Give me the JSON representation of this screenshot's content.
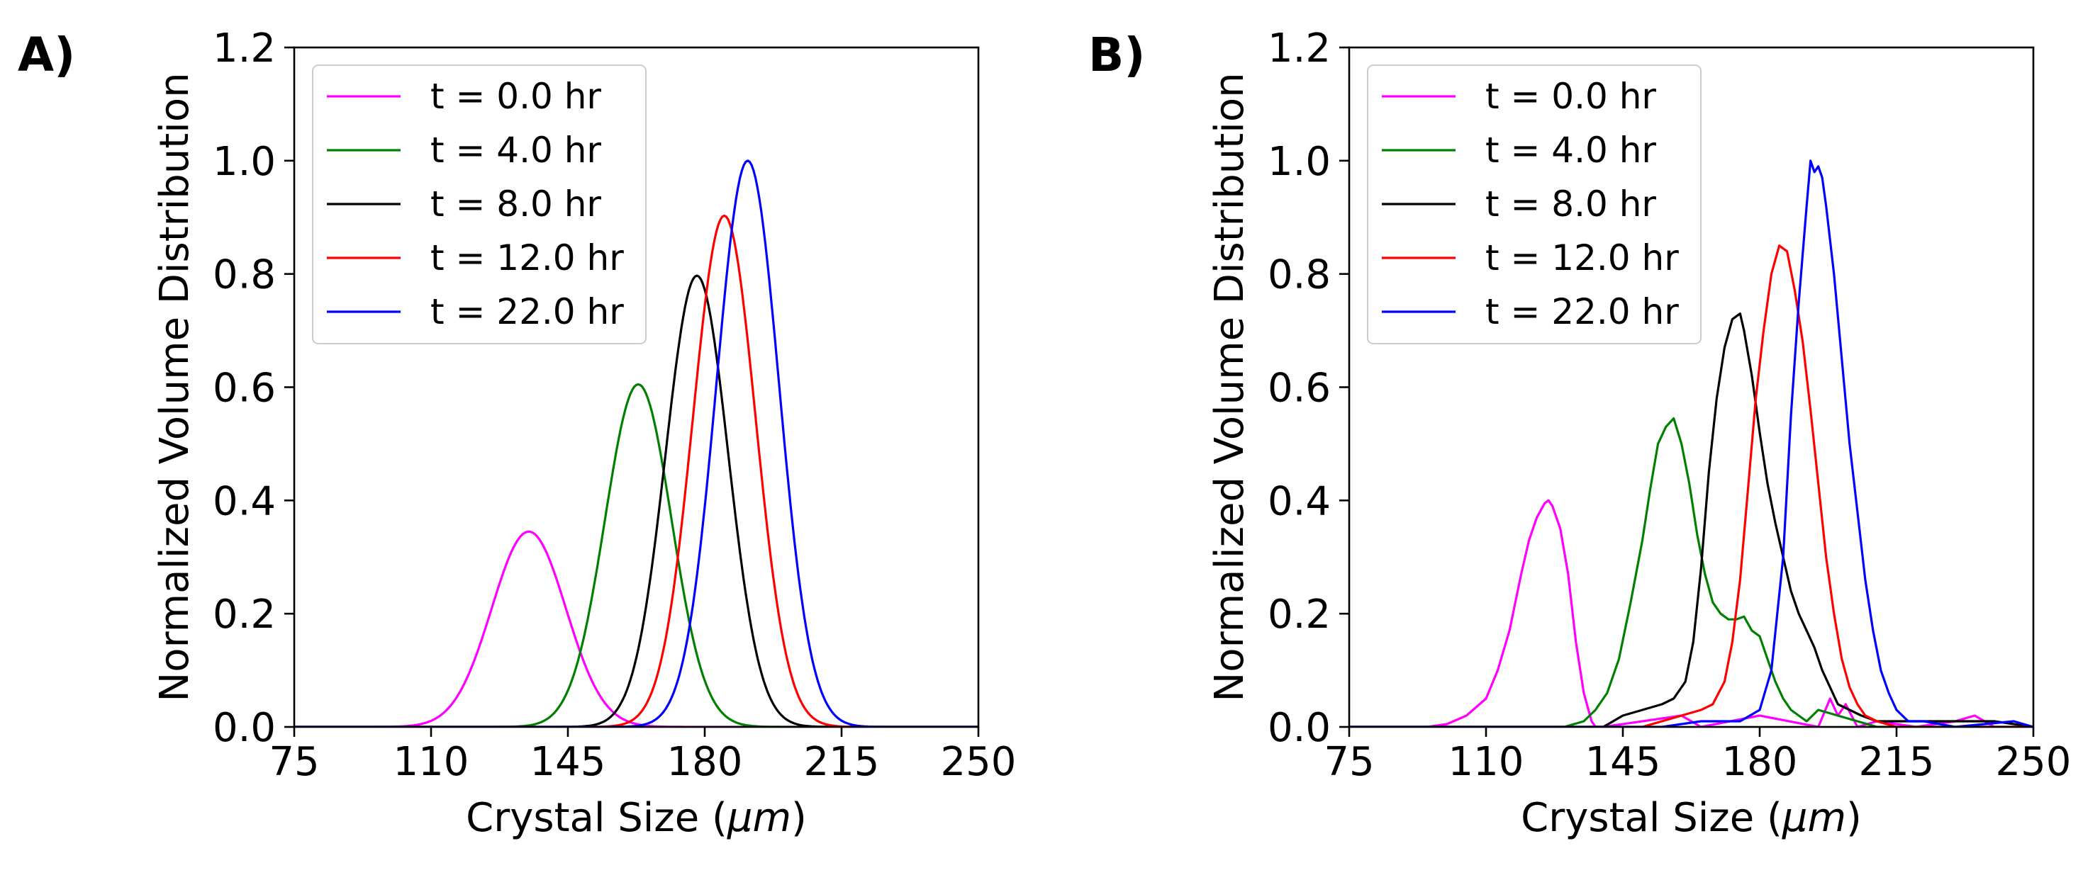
{
  "chart_data": [
    {
      "type": "line",
      "panel_label": "A)",
      "xlabel": "Crystal Size (μm)",
      "xlabel_prefix": "Crystal Size (",
      "xlabel_unit": "μm",
      "xlabel_suffix": ")",
      "ylabel": "Normalized Volume Distribution",
      "xlim": [
        75,
        250
      ],
      "ylim": [
        0,
        1.2
      ],
      "xticks": [
        75,
        110,
        145,
        180,
        215,
        250
      ],
      "yticks": [
        0,
        0.2,
        0.4,
        0.6,
        0.8,
        1.0,
        1.2
      ],
      "xtick_labels": [
        "75",
        "110",
        "145",
        "180",
        "215",
        "250"
      ],
      "ytick_labels": [
        "0.0",
        "0.2",
        "0.4",
        "0.6",
        "0.8",
        "1.0",
        "1.2"
      ],
      "grid": false,
      "legend_position": "top-left",
      "series": [
        {
          "name": "t = 0.0 hr",
          "color": "#ff00ff",
          "shape": "gaussian",
          "mu": 135,
          "sigma": 9.5,
          "peak": 0.345
        },
        {
          "name": "t = 4.0 hr",
          "color": "#008000",
          "shape": "gaussian",
          "mu": 163,
          "sigma": 8.5,
          "peak": 0.605
        },
        {
          "name": "t = 8.0 hr",
          "color": "#000000",
          "shape": "gaussian",
          "mu": 178,
          "sigma": 8.0,
          "peak": 0.797
        },
        {
          "name": "t = 12.0 hr",
          "color": "#ff0000",
          "shape": "gaussian",
          "mu": 185,
          "sigma": 8.0,
          "peak": 0.903
        },
        {
          "name": "t = 22.0 hr",
          "color": "#0000ff",
          "shape": "gaussian",
          "mu": 191,
          "sigma": 8.0,
          "peak": 1.0
        }
      ]
    },
    {
      "type": "line",
      "panel_label": "B)",
      "xlabel": "Crystal Size (μm)",
      "xlabel_prefix": "Crystal Size (",
      "xlabel_unit": "μm",
      "xlabel_suffix": ")",
      "ylabel": "Normalized Volume Distribution",
      "xlim": [
        75,
        250
      ],
      "ylim": [
        0,
        1.2
      ],
      "xticks": [
        75,
        110,
        145,
        180,
        215,
        250
      ],
      "yticks": [
        0,
        0.2,
        0.4,
        0.6,
        0.8,
        1.0,
        1.2
      ],
      "xtick_labels": [
        "75",
        "110",
        "145",
        "180",
        "215",
        "250"
      ],
      "ytick_labels": [
        "0.0",
        "0.2",
        "0.4",
        "0.6",
        "0.8",
        "1.0",
        "1.2"
      ],
      "grid": false,
      "legend_position": "top-left",
      "series": [
        {
          "name": "t = 0.0 hr",
          "color": "#ff00ff",
          "shape": "points",
          "x": [
            75,
            95,
            100,
            105,
            110,
            113,
            116,
            119,
            121,
            123,
            125,
            126,
            127,
            129,
            131,
            133,
            135,
            137,
            138,
            140,
            160,
            165,
            180,
            195,
            198,
            200,
            202,
            205,
            210,
            220,
            230,
            235,
            240,
            250
          ],
          "y": [
            0,
            0,
            0.005,
            0.02,
            0.05,
            0.1,
            0.17,
            0.27,
            0.33,
            0.37,
            0.395,
            0.4,
            0.39,
            0.35,
            0.27,
            0.15,
            0.06,
            0.01,
            0,
            0,
            0.02,
            0,
            0.02,
            0,
            0.05,
            0.02,
            0.04,
            0,
            0.01,
            0,
            0.01,
            0.02,
            0,
            0
          ]
        },
        {
          "name": "t = 4.0 hr",
          "color": "#008000",
          "shape": "points",
          "x": [
            75,
            130,
            135,
            138,
            141,
            144,
            147,
            150,
            152,
            154,
            156,
            158,
            160,
            162,
            164,
            166,
            168,
            170,
            172,
            174,
            176,
            178,
            180,
            182,
            184,
            186,
            188,
            190,
            192,
            195,
            200,
            205,
            210,
            250
          ],
          "y": [
            0,
            0,
            0.01,
            0.03,
            0.06,
            0.12,
            0.22,
            0.33,
            0.42,
            0.5,
            0.53,
            0.545,
            0.5,
            0.43,
            0.34,
            0.27,
            0.22,
            0.2,
            0.19,
            0.19,
            0.195,
            0.17,
            0.16,
            0.12,
            0.08,
            0.05,
            0.03,
            0.02,
            0.01,
            0.03,
            0.02,
            0.01,
            0,
            0
          ]
        },
        {
          "name": "t = 8.0 hr",
          "color": "#000000",
          "shape": "points",
          "x": [
            75,
            140,
            145,
            150,
            155,
            158,
            161,
            163,
            165,
            167,
            169,
            171,
            173,
            175,
            176,
            178,
            180,
            182,
            184,
            186,
            188,
            190,
            192,
            194,
            196,
            198,
            200,
            203,
            206,
            210,
            215,
            225,
            240,
            250
          ],
          "y": [
            0,
            0,
            0.02,
            0.03,
            0.04,
            0.05,
            0.08,
            0.15,
            0.28,
            0.45,
            0.58,
            0.67,
            0.72,
            0.73,
            0.7,
            0.62,
            0.52,
            0.43,
            0.36,
            0.3,
            0.24,
            0.2,
            0.17,
            0.14,
            0.1,
            0.07,
            0.04,
            0.03,
            0.02,
            0.01,
            0.01,
            0.01,
            0.01,
            0
          ]
        },
        {
          "name": "t = 12.0 hr",
          "color": "#ff0000",
          "shape": "points",
          "x": [
            75,
            150,
            155,
            160,
            165,
            168,
            171,
            173,
            175,
            177,
            179,
            181,
            183,
            185,
            187,
            189,
            191,
            193,
            195,
            197,
            199,
            201,
            203,
            205,
            207,
            210,
            215,
            250
          ],
          "y": [
            0,
            0,
            0.01,
            0.02,
            0.03,
            0.04,
            0.08,
            0.15,
            0.26,
            0.42,
            0.58,
            0.7,
            0.8,
            0.85,
            0.84,
            0.77,
            0.68,
            0.56,
            0.43,
            0.3,
            0.2,
            0.12,
            0.07,
            0.04,
            0.02,
            0.01,
            0,
            0
          ]
        },
        {
          "name": "t = 22.0 hr",
          "color": "#0000ff",
          "shape": "points",
          "x": [
            75,
            155,
            165,
            175,
            180,
            183,
            186,
            188,
            190,
            192,
            193,
            194,
            195,
            196,
            197,
            199,
            201,
            203,
            205,
            207,
            209,
            211,
            213,
            215,
            218,
            222,
            230,
            245,
            250
          ],
          "y": [
            0,
            0,
            0.01,
            0.01,
            0.03,
            0.1,
            0.3,
            0.55,
            0.75,
            0.92,
            1.0,
            0.98,
            0.99,
            0.97,
            0.92,
            0.8,
            0.65,
            0.5,
            0.38,
            0.26,
            0.17,
            0.1,
            0.06,
            0.03,
            0.01,
            0.01,
            0,
            0.01,
            0
          ]
        }
      ]
    }
  ]
}
